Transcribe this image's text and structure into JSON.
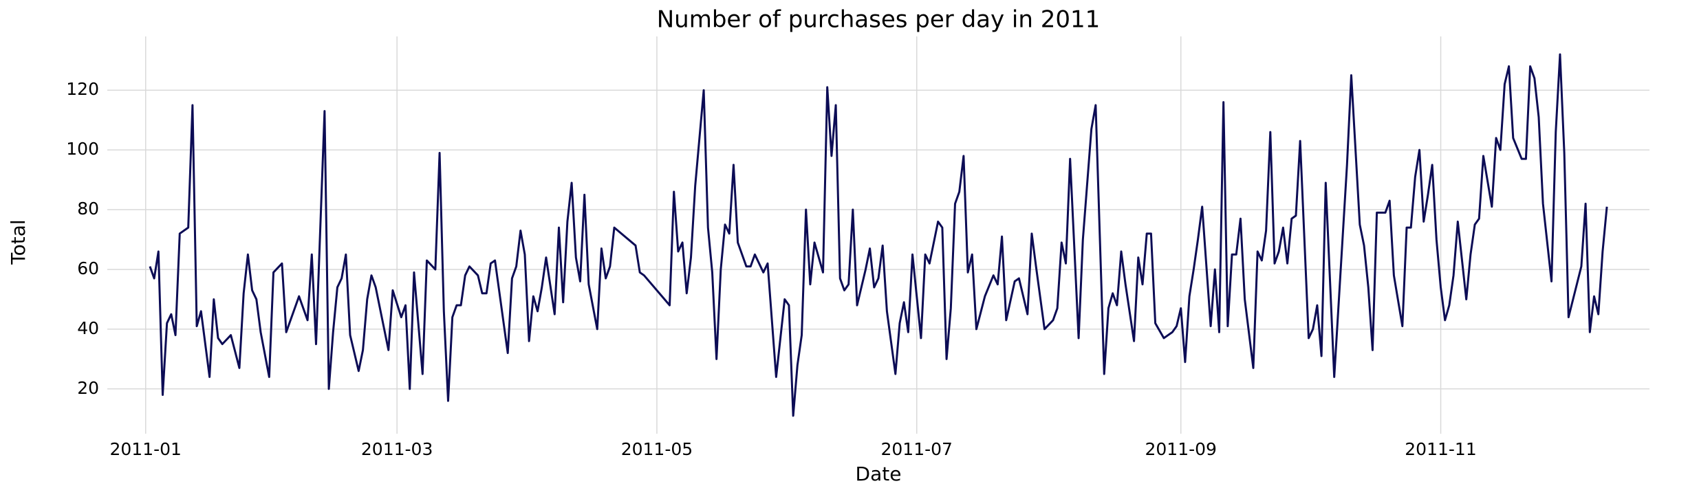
{
  "chart_data": {
    "type": "line",
    "title": "Number of purchases per day in 2011",
    "x_label": "Date",
    "y_label": "Total",
    "grid": true,
    "xlim": [
      "2010-12-23",
      "2011-12-20"
    ],
    "ylim": [
      5,
      138
    ],
    "xticks": [
      {
        "value": "2011-01-01",
        "label": "2011-01"
      },
      {
        "value": "2011-03-01",
        "label": "2011-03"
      },
      {
        "value": "2011-05-01",
        "label": "2011-05"
      },
      {
        "value": "2011-07-01",
        "label": "2011-07"
      },
      {
        "value": "2011-09-01",
        "label": "2011-09"
      },
      {
        "value": "2011-11-01",
        "label": "2011-11"
      }
    ],
    "yticks": [
      20,
      40,
      60,
      80,
      100,
      120
    ],
    "x": [
      "2011-01-02",
      "2011-01-03",
      "2011-01-04",
      "2011-01-05",
      "2011-01-06",
      "2011-01-07",
      "2011-01-08",
      "2011-01-09",
      "2011-01-11",
      "2011-01-12",
      "2011-01-13",
      "2011-01-14",
      "2011-01-16",
      "2011-01-17",
      "2011-01-18",
      "2011-01-19",
      "2011-01-21",
      "2011-01-23",
      "2011-01-24",
      "2011-01-25",
      "2011-01-26",
      "2011-01-27",
      "2011-01-28",
      "2011-01-30",
      "2011-01-31",
      "2011-02-02",
      "2011-02-03",
      "2011-02-06",
      "2011-02-08",
      "2011-02-09",
      "2011-02-10",
      "2011-02-12",
      "2011-02-13",
      "2011-02-14",
      "2011-02-15",
      "2011-02-16",
      "2011-02-17",
      "2011-02-18",
      "2011-02-20",
      "2011-02-21",
      "2011-02-22",
      "2011-02-23",
      "2011-02-24",
      "2011-02-27",
      "2011-02-28",
      "2011-03-02",
      "2011-03-03",
      "2011-03-04",
      "2011-03-05",
      "2011-03-07",
      "2011-03-08",
      "2011-03-10",
      "2011-03-11",
      "2011-03-12",
      "2011-03-13",
      "2011-03-14",
      "2011-03-15",
      "2011-03-16",
      "2011-03-17",
      "2011-03-18",
      "2011-03-20",
      "2011-03-21",
      "2011-03-22",
      "2011-03-23",
      "2011-03-24",
      "2011-03-27",
      "2011-03-28",
      "2011-03-29",
      "2011-03-30",
      "2011-03-31",
      "2011-04-01",
      "2011-04-02",
      "2011-04-03",
      "2011-04-04",
      "2011-04-05",
      "2011-04-07",
      "2011-04-08",
      "2011-04-09",
      "2011-04-10",
      "2011-04-11",
      "2011-04-12",
      "2011-04-13",
      "2011-04-14",
      "2011-04-15",
      "2011-04-17",
      "2011-04-18",
      "2011-04-19",
      "2011-04-20",
      "2011-04-21",
      "2011-04-26",
      "2011-04-27",
      "2011-04-28",
      "2011-05-04",
      "2011-05-05",
      "2011-05-06",
      "2011-05-07",
      "2011-05-08",
      "2011-05-09",
      "2011-05-10",
      "2011-05-12",
      "2011-05-13",
      "2011-05-14",
      "2011-05-15",
      "2011-05-16",
      "2011-05-17",
      "2011-05-18",
      "2011-05-19",
      "2011-05-20",
      "2011-05-21",
      "2011-05-22",
      "2011-05-23",
      "2011-05-24",
      "2011-05-26",
      "2011-05-27",
      "2011-05-29",
      "2011-05-31",
      "2011-06-01",
      "2011-06-02",
      "2011-06-03",
      "2011-06-04",
      "2011-06-05",
      "2011-06-06",
      "2011-06-07",
      "2011-06-09",
      "2011-06-10",
      "2011-06-11",
      "2011-06-12",
      "2011-06-13",
      "2011-06-14",
      "2011-06-15",
      "2011-06-16",
      "2011-06-17",
      "2011-06-18",
      "2011-06-19",
      "2011-06-20",
      "2011-06-21",
      "2011-06-22",
      "2011-06-23",
      "2011-06-24",
      "2011-06-26",
      "2011-06-27",
      "2011-06-28",
      "2011-06-29",
      "2011-06-30",
      "2011-07-02",
      "2011-07-03",
      "2011-07-04",
      "2011-07-06",
      "2011-07-07",
      "2011-07-08",
      "2011-07-09",
      "2011-07-10",
      "2011-07-11",
      "2011-07-12",
      "2011-07-13",
      "2011-07-14",
      "2011-07-15",
      "2011-07-17",
      "2011-07-19",
      "2011-07-20",
      "2011-07-21",
      "2011-07-22",
      "2011-07-24",
      "2011-07-25",
      "2011-07-27",
      "2011-07-28",
      "2011-07-29",
      "2011-07-31",
      "2011-08-02",
      "2011-08-03",
      "2011-08-04",
      "2011-08-05",
      "2011-08-06",
      "2011-08-08",
      "2011-08-09",
      "2011-08-11",
      "2011-08-12",
      "2011-08-14",
      "2011-08-15",
      "2011-08-16",
      "2011-08-17",
      "2011-08-18",
      "2011-08-19",
      "2011-08-21",
      "2011-08-22",
      "2011-08-23",
      "2011-08-24",
      "2011-08-25",
      "2011-08-26",
      "2011-08-28",
      "2011-08-30",
      "2011-08-31",
      "2011-09-01",
      "2011-09-02",
      "2011-09-03",
      "2011-09-04",
      "2011-09-05",
      "2011-09-06",
      "2011-09-08",
      "2011-09-09",
      "2011-09-10",
      "2011-09-11",
      "2011-09-12",
      "2011-09-13",
      "2011-09-14",
      "2011-09-15",
      "2011-09-16",
      "2011-09-18",
      "2011-09-19",
      "2011-09-20",
      "2011-09-21",
      "2011-09-22",
      "2011-09-23",
      "2011-09-24",
      "2011-09-25",
      "2011-09-26",
      "2011-09-27",
      "2011-09-28",
      "2011-09-29",
      "2011-10-01",
      "2011-10-02",
      "2011-10-03",
      "2011-10-04",
      "2011-10-05",
      "2011-10-07",
      "2011-10-10",
      "2011-10-11",
      "2011-10-13",
      "2011-10-14",
      "2011-10-15",
      "2011-10-16",
      "2011-10-17",
      "2011-10-19",
      "2011-10-20",
      "2011-10-21",
      "2011-10-23",
      "2011-10-24",
      "2011-10-25",
      "2011-10-26",
      "2011-10-27",
      "2011-10-28",
      "2011-10-29",
      "2011-10-30",
      "2011-10-31",
      "2011-11-01",
      "2011-11-02",
      "2011-11-03",
      "2011-11-04",
      "2011-11-05",
      "2011-11-07",
      "2011-11-08",
      "2011-11-09",
      "2011-11-10",
      "2011-11-11",
      "2011-11-13",
      "2011-11-14",
      "2011-11-15",
      "2011-11-16",
      "2011-11-17",
      "2011-11-18",
      "2011-11-20",
      "2011-11-21",
      "2011-11-22",
      "2011-11-23",
      "2011-11-24",
      "2011-11-25",
      "2011-11-27",
      "2011-11-28",
      "2011-11-29",
      "2011-11-30",
      "2011-12-01",
      "2011-12-04",
      "2011-12-05",
      "2011-12-06",
      "2011-12-07",
      "2011-12-08",
      "2011-12-09",
      "2011-12-10"
    ],
    "series": [
      {
        "name": "Total",
        "color": "#0c0c55",
        "values": [
          61,
          57,
          66,
          18,
          42,
          45,
          38,
          72,
          74,
          115,
          41,
          46,
          24,
          50,
          37,
          35,
          38,
          27,
          52,
          65,
          53,
          50,
          39,
          24,
          59,
          62,
          39,
          51,
          43,
          65,
          35,
          113,
          20,
          39,
          54,
          57,
          65,
          38,
          26,
          33,
          50,
          58,
          54,
          33,
          53,
          44,
          48,
          20,
          59,
          25,
          63,
          60,
          99,
          46,
          16,
          44,
          48,
          48,
          58,
          61,
          58,
          52,
          52,
          62,
          63,
          32,
          57,
          61,
          73,
          65,
          36,
          51,
          46,
          54,
          64,
          45,
          74,
          49,
          76,
          89,
          64,
          56,
          85,
          55,
          40,
          67,
          57,
          61,
          74,
          68,
          59,
          58,
          48,
          86,
          66,
          69,
          52,
          64,
          88,
          120,
          74,
          59,
          30,
          60,
          75,
          72,
          95,
          69,
          65,
          61,
          61,
          65,
          59,
          62,
          24,
          50,
          48,
          11,
          28,
          38,
          80,
          55,
          69,
          59,
          121,
          98,
          115,
          57,
          53,
          55,
          80,
          48,
          54,
          60,
          67,
          54,
          57,
          68,
          46,
          25,
          42,
          49,
          39,
          65,
          37,
          65,
          62,
          76,
          74,
          30,
          47,
          82,
          86,
          98,
          59,
          65,
          40,
          51,
          58,
          55,
          71,
          43,
          56,
          57,
          45,
          72,
          61,
          40,
          43,
          47,
          69,
          62,
          97,
          37,
          70,
          107,
          115,
          25,
          47,
          52,
          48,
          66,
          55,
          36,
          64,
          55,
          72,
          72,
          42,
          37,
          39,
          41,
          47,
          29,
          51,
          60,
          70,
          81,
          41,
          60,
          39,
          116,
          41,
          65,
          65,
          77,
          50,
          27,
          66,
          63,
          73,
          106,
          62,
          66,
          74,
          62,
          77,
          78,
          103,
          37,
          40,
          48,
          31,
          89,
          24,
          95,
          125,
          75,
          68,
          54,
          33,
          79,
          79,
          83,
          58,
          41,
          74,
          74,
          91,
          100,
          76,
          85,
          95,
          70,
          54,
          43,
          48,
          58,
          76,
          50,
          65,
          75,
          77,
          98,
          81,
          104,
          100,
          122,
          128,
          104,
          97,
          97,
          128,
          124,
          111,
          82,
          56,
          106,
          132,
          99,
          44,
          61,
          82,
          39,
          51,
          45,
          66,
          81
        ]
      }
    ]
  }
}
